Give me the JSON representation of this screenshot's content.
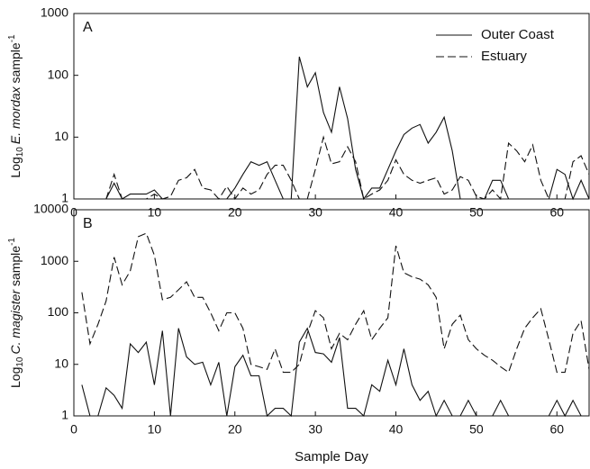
{
  "chart_data": [
    {
      "type": "line",
      "panel": "A",
      "log_y": true,
      "legend": "upper right",
      "ylabel": {
        "pre": "Log",
        "sub": "10",
        "italic": "E. mordax",
        "post": " sample",
        "sup": "-1"
      },
      "x": [
        1,
        2,
        3,
        4,
        5,
        6,
        7,
        8,
        9,
        10,
        11,
        12,
        13,
        14,
        15,
        16,
        17,
        18,
        19,
        20,
        21,
        22,
        23,
        24,
        25,
        26,
        27,
        28,
        29,
        30,
        31,
        32,
        33,
        34,
        35,
        36,
        37,
        38,
        39,
        40,
        41,
        42,
        43,
        44,
        45,
        46,
        47,
        48,
        49,
        50,
        51,
        52,
        53,
        54,
        55,
        56,
        57,
        58,
        59,
        60,
        61,
        62,
        63,
        64
      ],
      "series": [
        {
          "name": "Outer Coast",
          "color": "#111111",
          "linestyle": "solid",
          "values": [
            1,
            1,
            1,
            1,
            1.8,
            1,
            1.2,
            1.2,
            1.2,
            1.4,
            1,
            1,
            1,
            1,
            1,
            1,
            1,
            1,
            1,
            1.5,
            2.5,
            4,
            3.5,
            4,
            2,
            1,
            1,
            200,
            65,
            110,
            25,
            12,
            65,
            20,
            3,
            1,
            1.5,
            1.5,
            3,
            6,
            11,
            14,
            16,
            8,
            12,
            21,
            6,
            1,
            1,
            1,
            1,
            2,
            2,
            1,
            1,
            1,
            1,
            1,
            1,
            3,
            2.5,
            1,
            2,
            1
          ]
        },
        {
          "name": "Estuary",
          "color": "#111111",
          "linestyle": "dashed",
          "values": [
            1,
            1,
            1,
            1,
            2.5,
            1,
            1,
            1,
            1,
            1.2,
            1,
            1.1,
            2,
            2.2,
            3,
            1.5,
            1.4,
            1,
            1.6,
            1,
            1.5,
            1.2,
            1.4,
            2.5,
            3.5,
            3.5,
            2,
            1,
            1,
            3,
            10,
            3.7,
            4,
            7,
            4,
            1,
            1.2,
            1.4,
            2,
            4.3,
            2.5,
            2,
            1.8,
            2,
            2.2,
            1.2,
            1.4,
            2.3,
            2,
            1.1,
            1,
            1.4,
            1,
            8,
            6,
            4,
            7.5,
            2,
            1,
            1,
            1,
            4,
            5,
            2.5
          ]
        }
      ],
      "xlim": [
        0,
        64
      ],
      "xticks": [
        0,
        10,
        20,
        30,
        40,
        50,
        60
      ],
      "ylim": [
        1,
        1000
      ],
      "yticks": [
        1,
        10,
        100,
        1000
      ]
    },
    {
      "type": "line",
      "panel": "B",
      "log_y": true,
      "ylabel": {
        "pre": "Log",
        "sub": "10",
        "italic": "C. magister",
        "post": " sample",
        "sup": "-1"
      },
      "xlabel": "Sample Day",
      "x": [
        1,
        2,
        3,
        4,
        5,
        6,
        7,
        8,
        9,
        10,
        11,
        12,
        13,
        14,
        15,
        16,
        17,
        18,
        19,
        20,
        21,
        22,
        23,
        24,
        25,
        26,
        27,
        28,
        29,
        30,
        31,
        32,
        33,
        34,
        35,
        36,
        37,
        38,
        39,
        40,
        41,
        42,
        43,
        44,
        45,
        46,
        47,
        48,
        49,
        50,
        51,
        52,
        53,
        54,
        55,
        56,
        57,
        58,
        59,
        60,
        61,
        62,
        63,
        64
      ],
      "series": [
        {
          "name": "Outer Coast",
          "color": "#111111",
          "linestyle": "solid",
          "values": [
            4,
            1,
            1,
            3.5,
            2.5,
            1.4,
            25,
            17,
            27,
            4,
            45,
            1,
            50,
            14,
            10,
            11,
            4,
            11,
            1,
            9,
            15,
            6,
            6,
            1,
            1.4,
            1.4,
            1,
            27,
            50,
            17,
            16,
            11,
            33,
            1.4,
            1.4,
            1,
            4,
            3,
            12,
            4,
            20,
            4,
            2,
            3,
            1,
            2,
            1,
            1,
            2,
            1,
            1,
            1,
            2,
            1,
            1,
            1,
            1,
            1,
            1,
            2,
            1,
            2,
            1,
            1
          ]
        },
        {
          "name": "Estuary",
          "color": "#111111",
          "linestyle": "dashed",
          "values": [
            250,
            25,
            60,
            170,
            1200,
            350,
            650,
            3000,
            3500,
            1300,
            180,
            200,
            280,
            400,
            200,
            200,
            100,
            45,
            100,
            100,
            50,
            10,
            9,
            8,
            20,
            7,
            7,
            10,
            40,
            110,
            80,
            20,
            40,
            30,
            60,
            110,
            30,
            50,
            80,
            2000,
            600,
            500,
            450,
            350,
            200,
            20,
            60,
            90,
            30,
            20,
            15,
            12,
            9,
            7,
            20,
            50,
            80,
            120,
            30,
            7,
            7,
            40,
            70,
            8
          ]
        }
      ],
      "xlim": [
        0,
        64
      ],
      "xticks": [
        0,
        10,
        20,
        30,
        40,
        50,
        60
      ],
      "ylim": [
        1,
        10000
      ],
      "yticks": [
        1,
        10,
        100,
        1000,
        10000
      ]
    }
  ]
}
